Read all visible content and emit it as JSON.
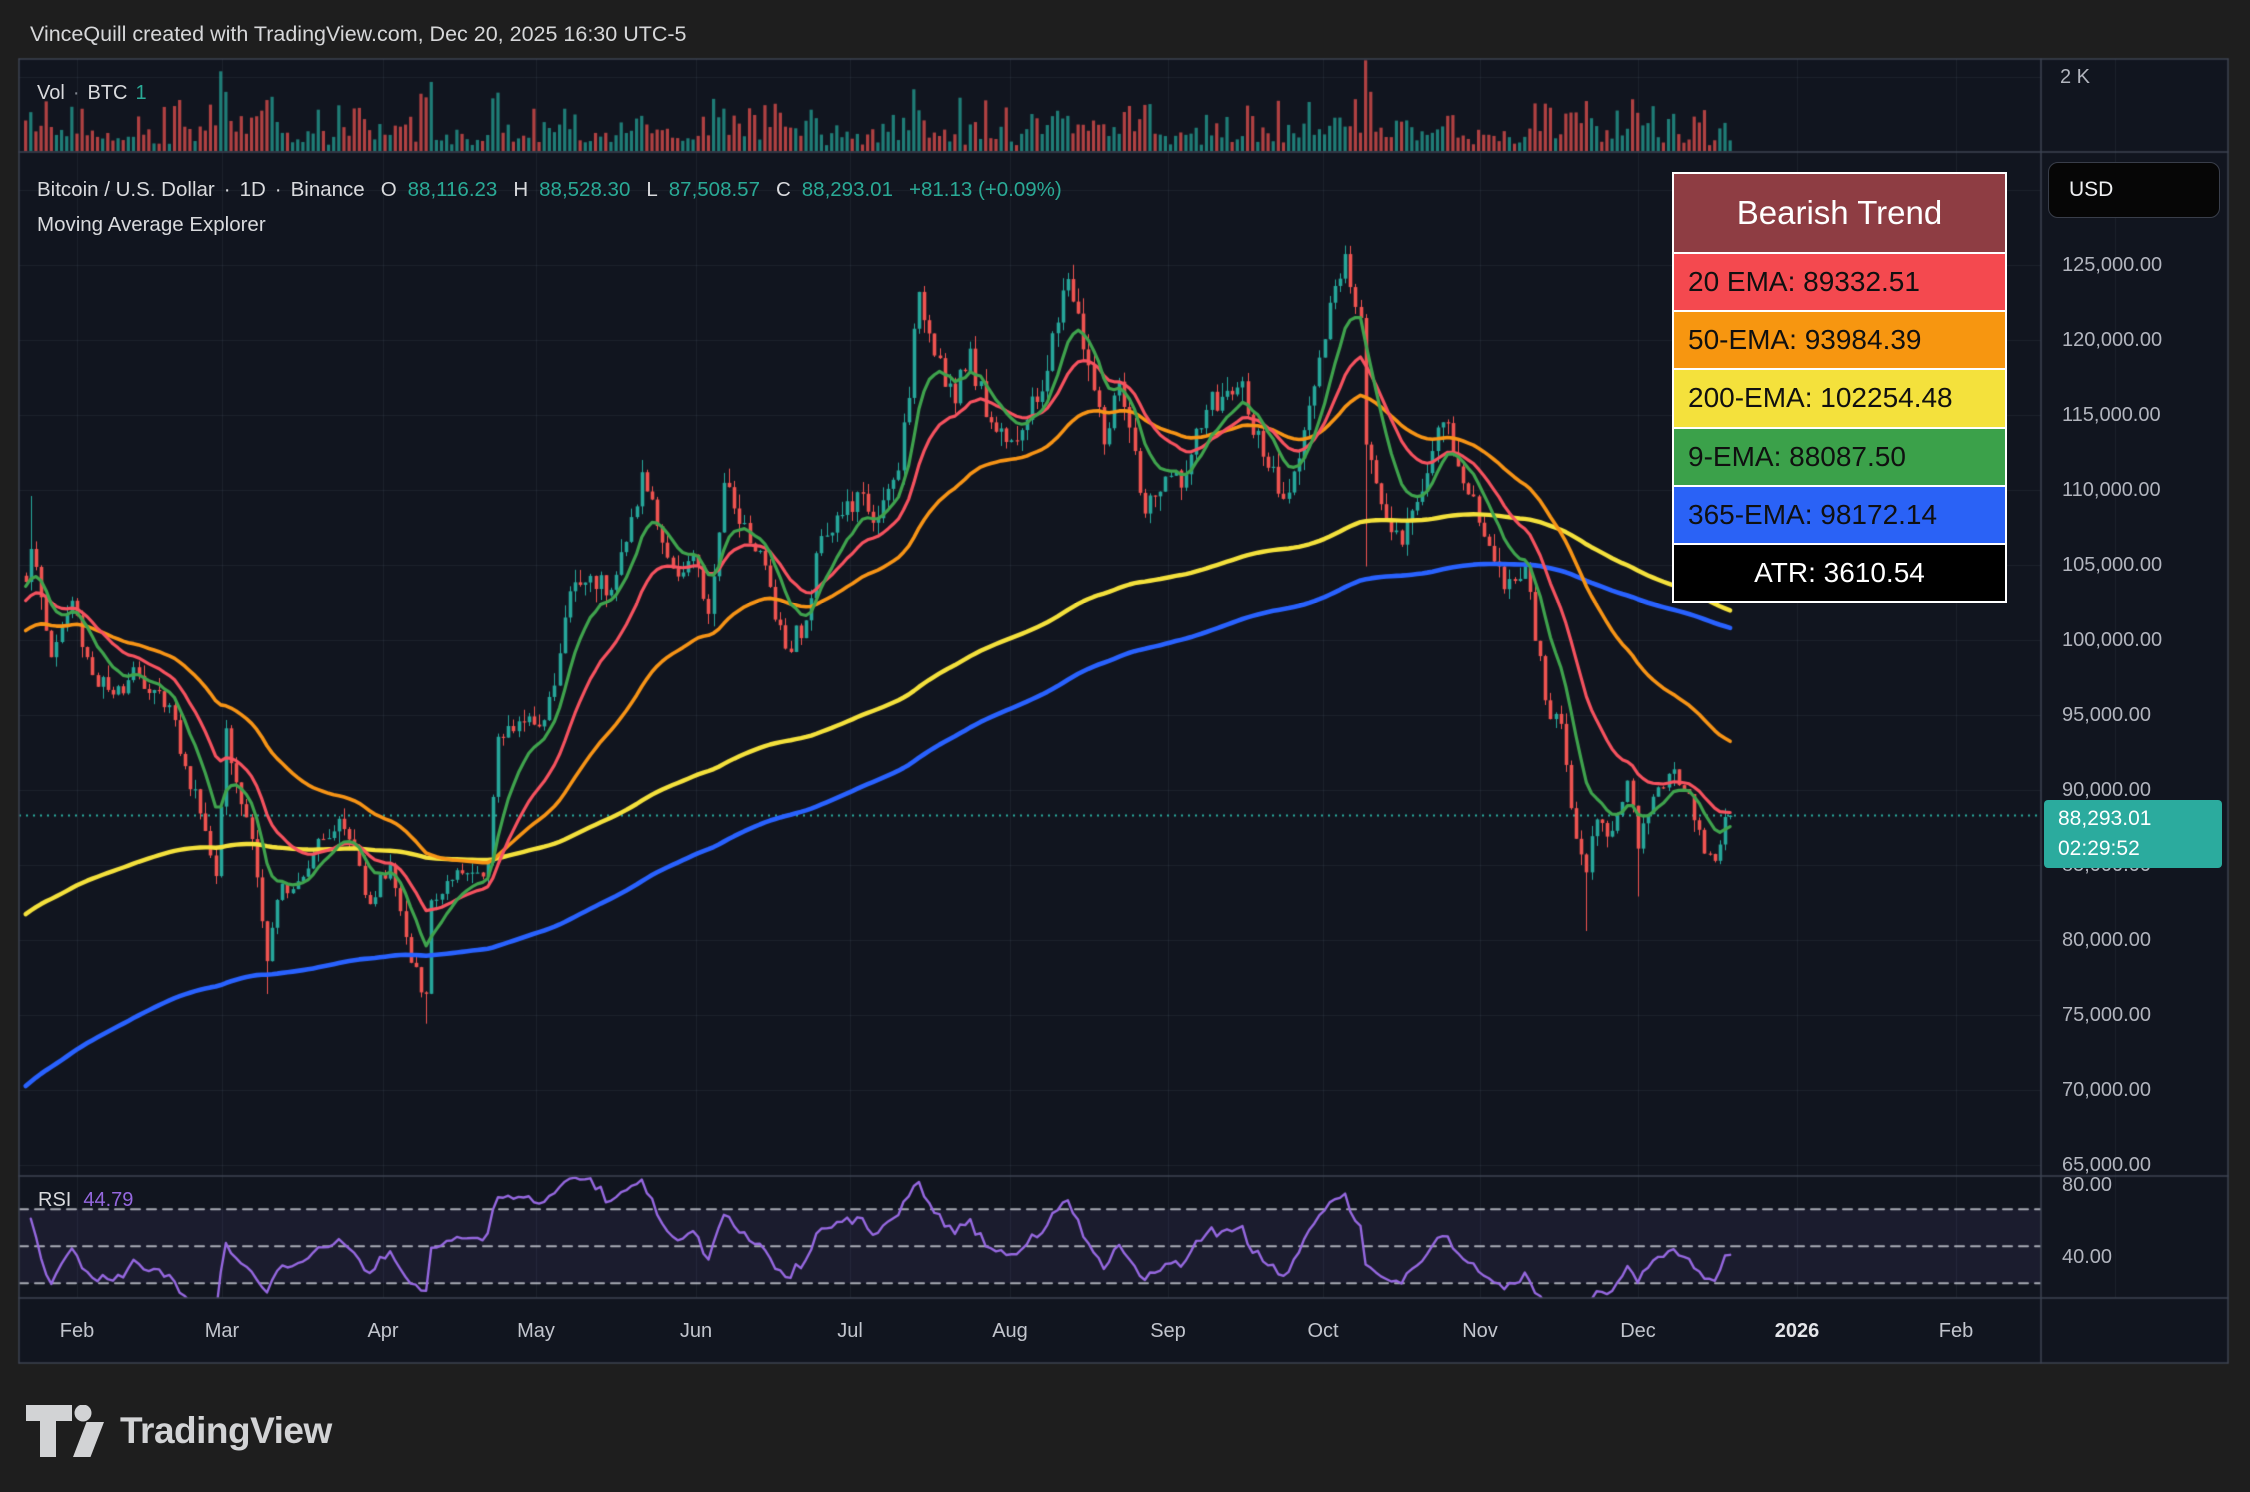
{
  "window": {
    "title": "VinceQuill created with TradingView.com, Dec 20, 2025 16:30 UTC-5"
  },
  "volume_pane": {
    "indicator": "Vol",
    "separator": "·",
    "symbol": "BTC",
    "value": "1",
    "scale_top_label": "2 K"
  },
  "symbol_header": {
    "name": "Bitcoin / U.S. Dollar",
    "sep1": "·",
    "interval": "1D",
    "sep2": "·",
    "exchange": "Binance",
    "o_key": "O",
    "o_val": "88,116.23",
    "h_key": "H",
    "h_val": "88,528.30",
    "l_key": "L",
    "l_val": "87,508.57",
    "c_key": "C",
    "c_val": "88,293.01",
    "change": "+81.13 (+0.09%)",
    "indicator_name": "Moving Average Explorer"
  },
  "trend_panel": {
    "title": "Bearish Trend",
    "title_bg": "#8e3d43",
    "rows": [
      {
        "label": "20 EMA: 89332.51",
        "bg": "#f4494f",
        "fg": "#101010",
        "center": false
      },
      {
        "label": "50-EMA: 93984.39",
        "bg": "#f79610",
        "fg": "#101010",
        "center": false
      },
      {
        "label": "200-EMA: 102254.48",
        "bg": "#f4e13c",
        "fg": "#101010",
        "center": false
      },
      {
        "label": "9-EMA: 88087.50",
        "bg": "#3ba14a",
        "fg": "#101010",
        "center": false
      },
      {
        "label": "365-EMA: 98172.14",
        "bg": "#2a62f6",
        "fg": "#101010",
        "center": false
      },
      {
        "label": "ATR: 3610.54",
        "bg": "#000000",
        "fg": "#ffffff",
        "center": true
      }
    ]
  },
  "price_axis": {
    "currency_button": "USD",
    "labels": [
      "125,000.00",
      "120,000.00",
      "115,000.00",
      "110,000.00",
      "105,000.00",
      "100,000.00",
      "95,000.00",
      "90,000.00",
      "85,000.00",
      "80,000.00",
      "75,000.00",
      "70,000.00",
      "65,000.00"
    ],
    "badge": {
      "price": "88,293.01",
      "countdown": "02:29:52",
      "bg": "#2bab9e"
    }
  },
  "rsi_pane": {
    "label": "RSI",
    "value": "44.79",
    "upper_label": "80.00",
    "lower_label": "40.00",
    "line_color": "#9668e0"
  },
  "time_axis": {
    "labels": [
      "Feb",
      "Mar",
      "Apr",
      "May",
      "Jun",
      "Jul",
      "Aug",
      "Sep",
      "Oct",
      "Nov",
      "Dec",
      "2026",
      "Feb"
    ],
    "bold_index": 11
  },
  "footer": {
    "brand": "TradingView"
  },
  "chart_data": {
    "type": "candlestick",
    "title": "Bitcoin / U.S. Dollar, 1D, Binance",
    "up_color": "#26a69a",
    "down_color": "#ef5350",
    "y_axis": {
      "min": 65000,
      "max": 134000,
      "tick_step": 5000
    },
    "current_price": 88293.01,
    "last_bar": {
      "open": 88116.23,
      "high": 88528.3,
      "low": 87508.57,
      "close": 88293.01,
      "change": 81.13,
      "change_pct": 0.09
    },
    "atr": 3610.54,
    "start_date": "2025-01-19",
    "close_waypoints": [
      [
        3,
        104000
      ],
      [
        4,
        106200
      ],
      [
        8,
        98900
      ],
      [
        12,
        102600
      ],
      [
        16,
        97700
      ],
      [
        20,
        96200
      ],
      [
        24,
        98300
      ],
      [
        27,
        96500
      ],
      [
        31,
        95800
      ],
      [
        34,
        91500
      ],
      [
        37,
        88600
      ],
      [
        40,
        84300
      ],
      [
        42,
        94300
      ],
      [
        44,
        90600
      ],
      [
        47,
        86800
      ],
      [
        50,
        78600
      ],
      [
        53,
        83700
      ],
      [
        56,
        84000
      ],
      [
        60,
        86800
      ],
      [
        64,
        88000
      ],
      [
        67,
        86000
      ],
      [
        70,
        82500
      ],
      [
        74,
        85100
      ],
      [
        78,
        78400
      ],
      [
        81,
        76300
      ],
      [
        82,
        82600
      ],
      [
        86,
        83900
      ],
      [
        90,
        84500
      ],
      [
        93,
        85200
      ],
      [
        95,
        93400
      ],
      [
        99,
        94700
      ],
      [
        102,
        94200
      ],
      [
        106,
        96900
      ],
      [
        109,
        103300
      ],
      [
        113,
        104200
      ],
      [
        117,
        103500
      ],
      [
        120,
        106500
      ],
      [
        123,
        111100
      ],
      [
        126,
        107700
      ],
      [
        129,
        104600
      ],
      [
        133,
        105600
      ],
      [
        136,
        101600
      ],
      [
        139,
        110300
      ],
      [
        143,
        107800
      ],
      [
        147,
        104900
      ],
      [
        151,
        99500
      ],
      [
        155,
        101200
      ],
      [
        158,
        107100
      ],
      [
        162,
        108400
      ],
      [
        166,
        109600
      ],
      [
        169,
        108000
      ],
      [
        173,
        111300
      ],
      [
        177,
        123000
      ],
      [
        181,
        118800
      ],
      [
        184,
        115800
      ],
      [
        187,
        119400
      ],
      [
        190,
        115000
      ],
      [
        194,
        113400
      ],
      [
        198,
        114600
      ],
      [
        201,
        116700
      ],
      [
        206,
        124200
      ],
      [
        210,
        118300
      ],
      [
        213,
        113100
      ],
      [
        216,
        117000
      ],
      [
        221,
        108500
      ],
      [
        225,
        110700
      ],
      [
        229,
        111000
      ],
      [
        233,
        115400
      ],
      [
        236,
        116100
      ],
      [
        240,
        117100
      ],
      [
        244,
        112000
      ],
      [
        248,
        109200
      ],
      [
        252,
        114000
      ],
      [
        255,
        118600
      ],
      [
        258,
        123500
      ],
      [
        260,
        125800
      ],
      [
        263,
        121700
      ],
      [
        264,
        113000
      ],
      [
        268,
        108200
      ],
      [
        271,
        106500
      ],
      [
        275,
        110100
      ],
      [
        279,
        114600
      ],
      [
        283,
        110600
      ],
      [
        287,
        107000
      ],
      [
        291,
        103500
      ],
      [
        295,
        105000
      ],
      [
        299,
        95900
      ],
      [
        302,
        94300
      ],
      [
        305,
        86900
      ],
      [
        307,
        84600
      ],
      [
        309,
        88200
      ],
      [
        312,
        87300
      ],
      [
        315,
        90500
      ],
      [
        317,
        86000
      ],
      [
        320,
        89600
      ],
      [
        323,
        91200
      ],
      [
        326,
        90100
      ],
      [
        329,
        87400
      ],
      [
        331,
        85800
      ],
      [
        333,
        86400
      ],
      [
        335,
        88293
      ]
    ],
    "extremes": [
      {
        "day": 4,
        "high": 109600
      },
      {
        "day": 50,
        "low": 76400
      },
      {
        "day": 81,
        "low": 74420
      },
      {
        "day": 123,
        "high": 112000
      },
      {
        "day": 177,
        "high": 123218
      },
      {
        "day": 206,
        "high": 124474
      },
      {
        "day": 260,
        "high": 126296
      },
      {
        "day": 264,
        "low": 104900
      },
      {
        "day": 307,
        "low": 80600
      },
      {
        "day": 317,
        "low": 82900
      }
    ],
    "emas": [
      {
        "label": "9-EMA",
        "period": 9,
        "value": 88087.5,
        "color": "#3fa34d",
        "init": 103500,
        "smoothing": 9
      },
      {
        "label": "20 EMA",
        "period": 20,
        "value": 89332.51,
        "color": "#f6525f",
        "init": 102500,
        "smoothing": 20
      },
      {
        "label": "50-EMA",
        "period": 50,
        "value": 93984.39,
        "color": "#f79416",
        "init": 100500,
        "smoothing": 50
      },
      {
        "label": "200-EMA",
        "period": 200,
        "value": 102254.48,
        "color": "#f4e13c",
        "init": 81500,
        "smoothing": 200
      },
      {
        "label": "365-EMA",
        "period": 365,
        "value": 98172.14,
        "color": "#2962ff",
        "init": 70000,
        "smoothing": 250
      }
    ],
    "rsi": {
      "period": 14,
      "last": 44.79,
      "bands": [
        70,
        50,
        30
      ]
    },
    "volume_spikes": {
      "4": 1.05,
      "42": 1.2,
      "81": 1.45,
      "95": 0.9,
      "123": 0.95,
      "139": 0.85,
      "177": 1.1,
      "206": 0.95,
      "258": 0.9,
      "262": 1.4,
      "264": 2.45,
      "265": 1.6,
      "299": 1.1,
      "307": 1.35
    }
  }
}
